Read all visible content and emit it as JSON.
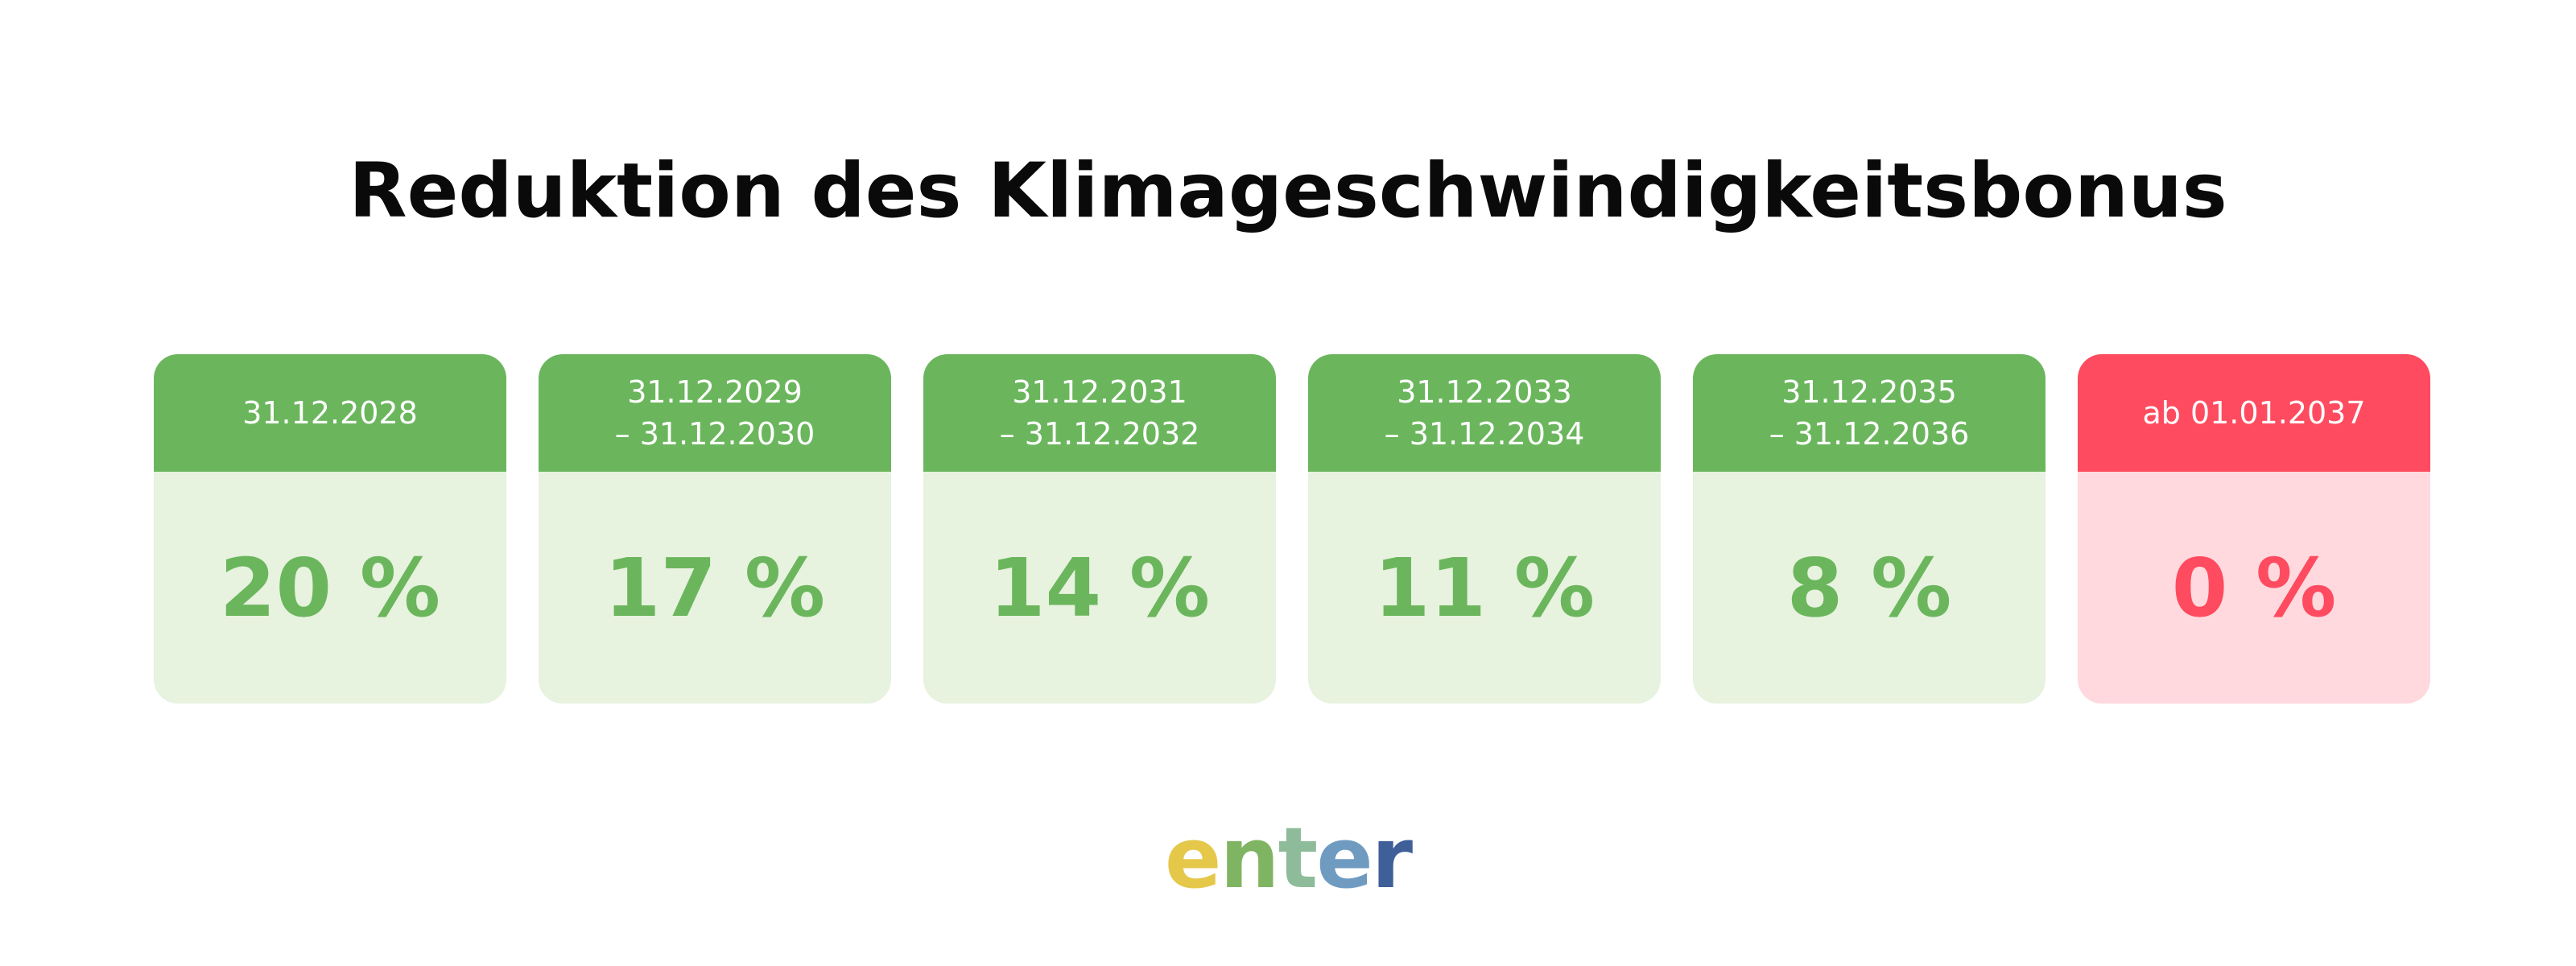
{
  "title": "Reduktion des Klimageschwindigkeitsbonus",
  "colors": {
    "green_header": "#6bb65d",
    "green_body": "#e7f2df",
    "green_text": "#6bb65d",
    "red_header": "#fe4b5f",
    "red_body": "#ffd9de",
    "red_text": "#fe4b5f"
  },
  "cards": [
    {
      "line1": "31.12.2028",
      "line2": "",
      "value": "20 %",
      "status": "green"
    },
    {
      "line1": "31.12.2029",
      "line2": "– 31.12.2030",
      "value": "17 %",
      "status": "green"
    },
    {
      "line1": "31.12.2031",
      "line2": "– 31.12.2032",
      "value": "14 %",
      "status": "green"
    },
    {
      "line1": "31.12.2033",
      "line2": "– 31.12.2034",
      "value": "11 %",
      "status": "green"
    },
    {
      "line1": "31.12.2035",
      "line2": "– 31.12.2036",
      "value": "8 %",
      "status": "green"
    },
    {
      "line1": "ab 01.01.2037",
      "line2": "",
      "value": "0 %",
      "status": "red"
    }
  ],
  "logo": {
    "text": "enter",
    "letter_colors": [
      "#e5c84a",
      "#7fb562",
      "#8ebc9a",
      "#6f9bc1",
      "#3f5f98"
    ]
  }
}
